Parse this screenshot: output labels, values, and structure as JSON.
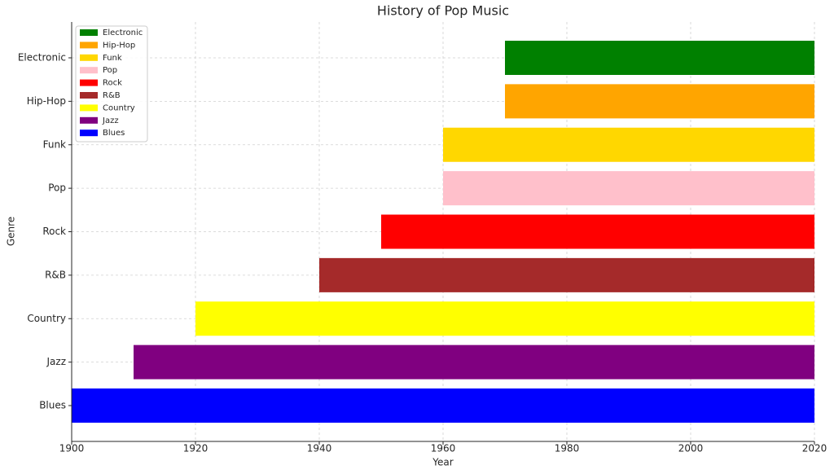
{
  "chart_data": {
    "type": "range-bar",
    "orientation": "horizontal",
    "title": "History of Pop Music",
    "x_label": "Year",
    "y_label": "Genre",
    "series": [
      {
        "name": "Blues",
        "color": "#0000ff",
        "values": [
          1900,
          2020
        ]
      },
      {
        "name": "Jazz",
        "color": "#800080",
        "values": [
          1910,
          2020
        ]
      },
      {
        "name": "Country",
        "color": "#ffff00",
        "values": [
          1920,
          2020
        ]
      },
      {
        "name": "R&B",
        "color": "#a52a2a",
        "values": [
          1940,
          2020
        ]
      },
      {
        "name": "Rock",
        "color": "#ff0000",
        "values": [
          1950,
          2020
        ]
      },
      {
        "name": "Pop",
        "color": "#ffc0cb",
        "values": [
          1960,
          2020
        ]
      },
      {
        "name": "Funk",
        "color": "#ffd700",
        "values": [
          1960,
          2020
        ]
      },
      {
        "name": "Hip-Hop",
        "color": "#ffa500",
        "values": [
          1970,
          2020
        ]
      },
      {
        "name": "Electronic",
        "color": "#008000",
        "values": [
          1970,
          2020
        ]
      }
    ],
    "xlim": [
      1900,
      2020
    ],
    "xticks": [
      1900,
      1920,
      1940,
      1960,
      1980,
      2000,
      2020
    ],
    "grid": true,
    "legend": "upper left"
  }
}
